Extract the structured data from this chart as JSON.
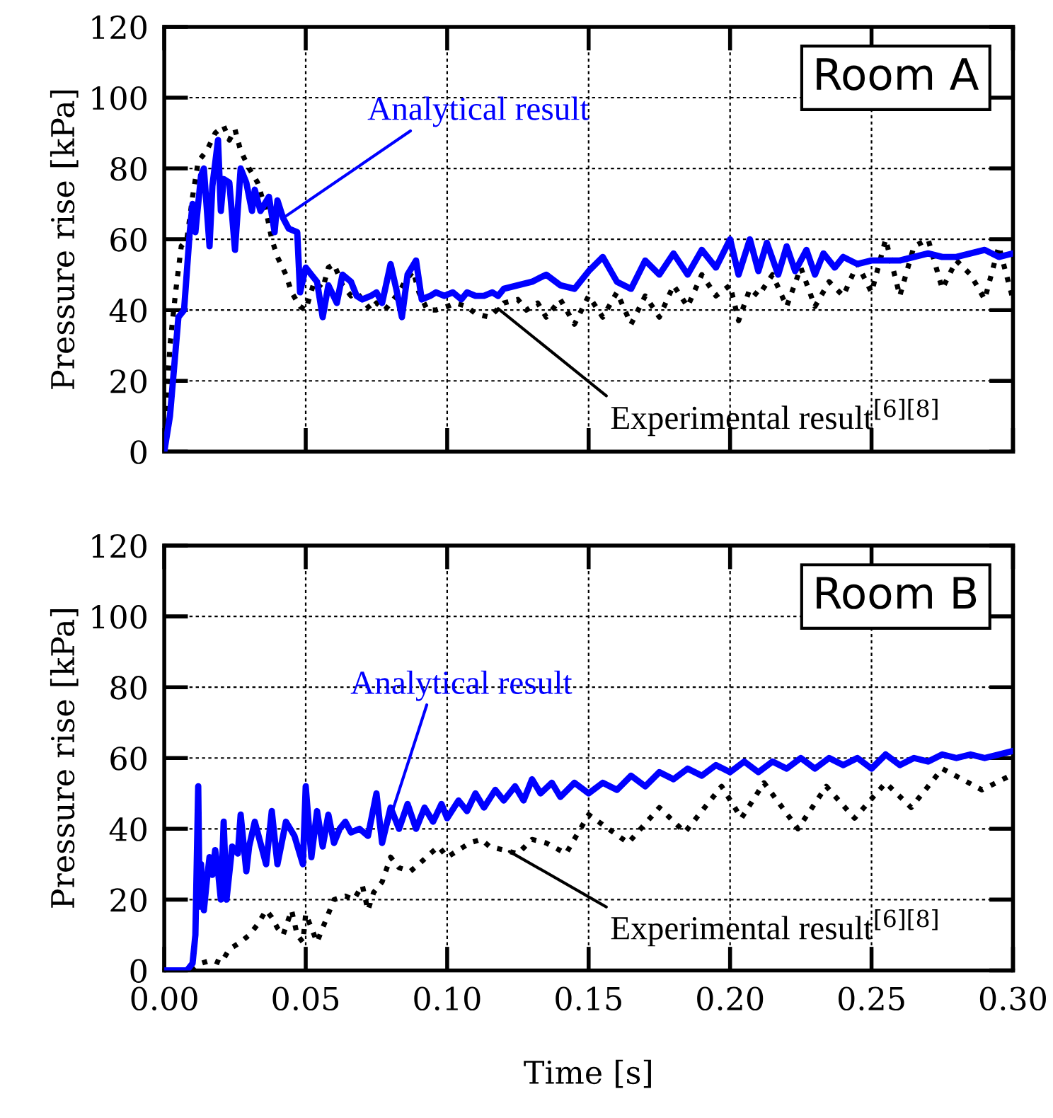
{
  "chart_data": [
    {
      "type": "line",
      "title": "Room A",
      "ylabel": "Pressure rise [kPa]",
      "xlim": [
        0,
        0.3
      ],
      "xticks": [
        0,
        0.05,
        0.1,
        0.15,
        0.2,
        0.25,
        0.3
      ],
      "ylim": [
        0,
        120
      ],
      "yticks": [
        0,
        20,
        40,
        60,
        80,
        100,
        120
      ],
      "grid": true,
      "tick_labels": "y",
      "series": [
        {
          "name": "Experimental result$^{[6][8]}$",
          "color": "#000000",
          "line_style": "dotted",
          "x": [
            0,
            0.002,
            0.004,
            0.006,
            0.008,
            0.01,
            0.012,
            0.015,
            0.018,
            0.021,
            0.023,
            0.025,
            0.027,
            0.03,
            0.033,
            0.036,
            0.038,
            0.04,
            0.043,
            0.045,
            0.048,
            0.05,
            0.053,
            0.056,
            0.058,
            0.06,
            0.063,
            0.066,
            0.068,
            0.07,
            0.073,
            0.075,
            0.078,
            0.08,
            0.083,
            0.085,
            0.088,
            0.09,
            0.093,
            0.096,
            0.1,
            0.103,
            0.107,
            0.11,
            0.115,
            0.12,
            0.125,
            0.128,
            0.132,
            0.135,
            0.14,
            0.145,
            0.15,
            0.155,
            0.16,
            0.165,
            0.17,
            0.175,
            0.18,
            0.185,
            0.19,
            0.195,
            0.2,
            0.203,
            0.207,
            0.21,
            0.215,
            0.22,
            0.225,
            0.23,
            0.235,
            0.24,
            0.245,
            0.25,
            0.255,
            0.26,
            0.265,
            0.27,
            0.275,
            0.28,
            0.285,
            0.29,
            0.295,
            0.3
          ],
          "values": [
            0,
            30,
            45,
            58,
            60,
            72,
            82,
            85,
            90,
            92,
            88,
            91,
            85,
            80,
            76,
            68,
            60,
            55,
            50,
            45,
            41,
            40,
            48,
            46,
            52,
            53,
            47,
            44,
            45,
            43,
            40,
            42,
            40,
            42,
            45,
            48,
            51,
            45,
            40,
            40,
            41,
            42,
            41,
            39,
            38,
            42,
            43,
            40,
            42,
            38,
            43,
            36,
            44,
            38,
            45,
            36,
            44,
            38,
            47,
            41,
            50,
            44,
            47,
            37,
            46,
            44,
            50,
            41,
            52,
            41,
            48,
            44,
            53,
            45,
            60,
            44,
            58,
            60,
            46,
            54,
            50,
            43,
            58,
            43
          ]
        },
        {
          "name": "Analytical result",
          "color": "#0000ff",
          "line_style": "solid",
          "x": [
            0,
            0.002,
            0.005,
            0.007,
            0.009,
            0.01,
            0.011,
            0.013,
            0.014,
            0.016,
            0.017,
            0.019,
            0.02,
            0.021,
            0.023,
            0.025,
            0.027,
            0.029,
            0.031,
            0.032,
            0.034,
            0.037,
            0.039,
            0.04,
            0.042,
            0.044,
            0.047,
            0.048,
            0.05,
            0.052,
            0.054,
            0.056,
            0.058,
            0.061,
            0.063,
            0.066,
            0.068,
            0.07,
            0.073,
            0.075,
            0.077,
            0.08,
            0.082,
            0.084,
            0.086,
            0.089,
            0.091,
            0.094,
            0.096,
            0.099,
            0.102,
            0.105,
            0.107,
            0.11,
            0.113,
            0.116,
            0.118,
            0.12,
            0.125,
            0.13,
            0.135,
            0.14,
            0.145,
            0.15,
            0.155,
            0.16,
            0.165,
            0.17,
            0.175,
            0.18,
            0.185,
            0.19,
            0.195,
            0.2,
            0.203,
            0.207,
            0.21,
            0.213,
            0.217,
            0.22,
            0.223,
            0.227,
            0.23,
            0.233,
            0.237,
            0.24,
            0.245,
            0.25,
            0.26,
            0.265,
            0.27,
            0.275,
            0.28,
            0.285,
            0.29,
            0.295,
            0.3
          ],
          "values": [
            0,
            10,
            38,
            40,
            62,
            70,
            62,
            78,
            80,
            58,
            75,
            88,
            68,
            77,
            76,
            57,
            80,
            76,
            68,
            74,
            68,
            72,
            62,
            71,
            66,
            63,
            62,
            45,
            52,
            50,
            48,
            38,
            47,
            42,
            50,
            48,
            44,
            43,
            44,
            45,
            42,
            53,
            46,
            38,
            50,
            54,
            43,
            44,
            45,
            44,
            45,
            43,
            45,
            44,
            44,
            45,
            44,
            46,
            47,
            48,
            50,
            47,
            46,
            51,
            55,
            48,
            46,
            54,
            50,
            56,
            50,
            57,
            52,
            60,
            50,
            60,
            51,
            59,
            50,
            58,
            51,
            57,
            50,
            56,
            52,
            55,
            53,
            54,
            54,
            55,
            56,
            55,
            55,
            56,
            57,
            55,
            56
          ]
        }
      ]
    },
    {
      "type": "line",
      "title": "Room B",
      "xlabel": "Time [s]",
      "ylabel": "Pressure rise [kPa]",
      "xlim": [
        0,
        0.3
      ],
      "xticks": [
        {
          "value": 0,
          "label": "0.00"
        },
        {
          "value": 0.05,
          "label": "0.05"
        },
        {
          "value": 0.1,
          "label": "0.10"
        },
        {
          "value": 0.15,
          "label": "0.15"
        },
        {
          "value": 0.2,
          "label": "0.20"
        },
        {
          "value": 0.25,
          "label": "0.25"
        },
        {
          "value": 0.3,
          "label": "0.30"
        }
      ],
      "ylim": [
        0,
        120
      ],
      "yticks": [
        0,
        20,
        40,
        60,
        80,
        100,
        120
      ],
      "grid": true,
      "series": [
        {
          "name": "Experimental result$^{[6][8]}$",
          "color": "#000000",
          "line_style": "dotted",
          "x": [
            0,
            0.01,
            0.013,
            0.017,
            0.02,
            0.023,
            0.027,
            0.03,
            0.033,
            0.036,
            0.038,
            0.04,
            0.042,
            0.045,
            0.047,
            0.049,
            0.05,
            0.052,
            0.054,
            0.057,
            0.06,
            0.064,
            0.067,
            0.07,
            0.072,
            0.074,
            0.077,
            0.08,
            0.083,
            0.087,
            0.09,
            0.094,
            0.097,
            0.1,
            0.104,
            0.108,
            0.112,
            0.115,
            0.12,
            0.125,
            0.13,
            0.135,
            0.142,
            0.15,
            0.164,
            0.175,
            0.184,
            0.197,
            0.204,
            0.212,
            0.224,
            0.234,
            0.244,
            0.255,
            0.264,
            0.275,
            0.289,
            0.299
          ],
          "values": [
            0,
            0,
            2,
            3,
            2,
            6,
            8,
            10,
            13,
            17,
            15,
            12,
            10,
            17,
            10,
            8,
            16,
            12,
            8,
            14,
            20,
            21,
            20,
            24,
            17,
            22,
            25,
            32,
            29,
            28,
            30,
            33,
            35,
            32,
            34,
            36,
            37,
            35,
            34,
            33,
            37,
            36,
            33,
            44,
            36,
            46,
            39,
            52,
            43,
            53,
            40,
            52,
            43,
            53,
            46,
            57,
            51,
            55
          ]
        },
        {
          "name": "Analytical result",
          "color": "#0000ff",
          "line_style": "solid",
          "x": [
            0,
            0.008,
            0.01,
            0.011,
            0.012,
            0.0125,
            0.013,
            0.014,
            0.015,
            0.016,
            0.017,
            0.018,
            0.019,
            0.02,
            0.021,
            0.022,
            0.024,
            0.026,
            0.027,
            0.029,
            0.03,
            0.032,
            0.034,
            0.036,
            0.038,
            0.04,
            0.043,
            0.046,
            0.049,
            0.05,
            0.052,
            0.054,
            0.056,
            0.058,
            0.06,
            0.062,
            0.064,
            0.066,
            0.069,
            0.072,
            0.075,
            0.077,
            0.08,
            0.083,
            0.086,
            0.089,
            0.092,
            0.095,
            0.098,
            0.1,
            0.104,
            0.107,
            0.11,
            0.113,
            0.117,
            0.12,
            0.124,
            0.127,
            0.13,
            0.133,
            0.137,
            0.14,
            0.145,
            0.15,
            0.155,
            0.16,
            0.165,
            0.17,
            0.175,
            0.18,
            0.185,
            0.19,
            0.195,
            0.2,
            0.205,
            0.21,
            0.215,
            0.22,
            0.225,
            0.23,
            0.235,
            0.24,
            0.245,
            0.25,
            0.255,
            0.26,
            0.265,
            0.27,
            0.275,
            0.28,
            0.285,
            0.29,
            0.295,
            0.3
          ],
          "values": [
            0,
            0,
            2,
            10,
            52,
            18,
            30,
            17,
            25,
            32,
            27,
            34,
            28,
            20,
            42,
            20,
            35,
            33,
            44,
            28,
            35,
            42,
            36,
            30,
            45,
            30,
            42,
            38,
            30,
            52,
            32,
            45,
            35,
            44,
            36,
            40,
            42,
            39,
            40,
            38,
            50,
            36,
            46,
            40,
            47,
            40,
            46,
            42,
            47,
            43,
            48,
            45,
            50,
            46,
            51,
            48,
            52,
            48,
            54,
            50,
            53,
            49,
            53,
            50,
            53,
            51,
            55,
            52,
            56,
            54,
            57,
            55,
            58,
            56,
            59,
            56,
            59,
            57,
            60,
            57,
            60,
            58,
            60,
            57,
            61,
            58,
            60,
            59,
            61,
            60,
            61,
            60,
            61,
            62
          ]
        }
      ]
    }
  ]
}
